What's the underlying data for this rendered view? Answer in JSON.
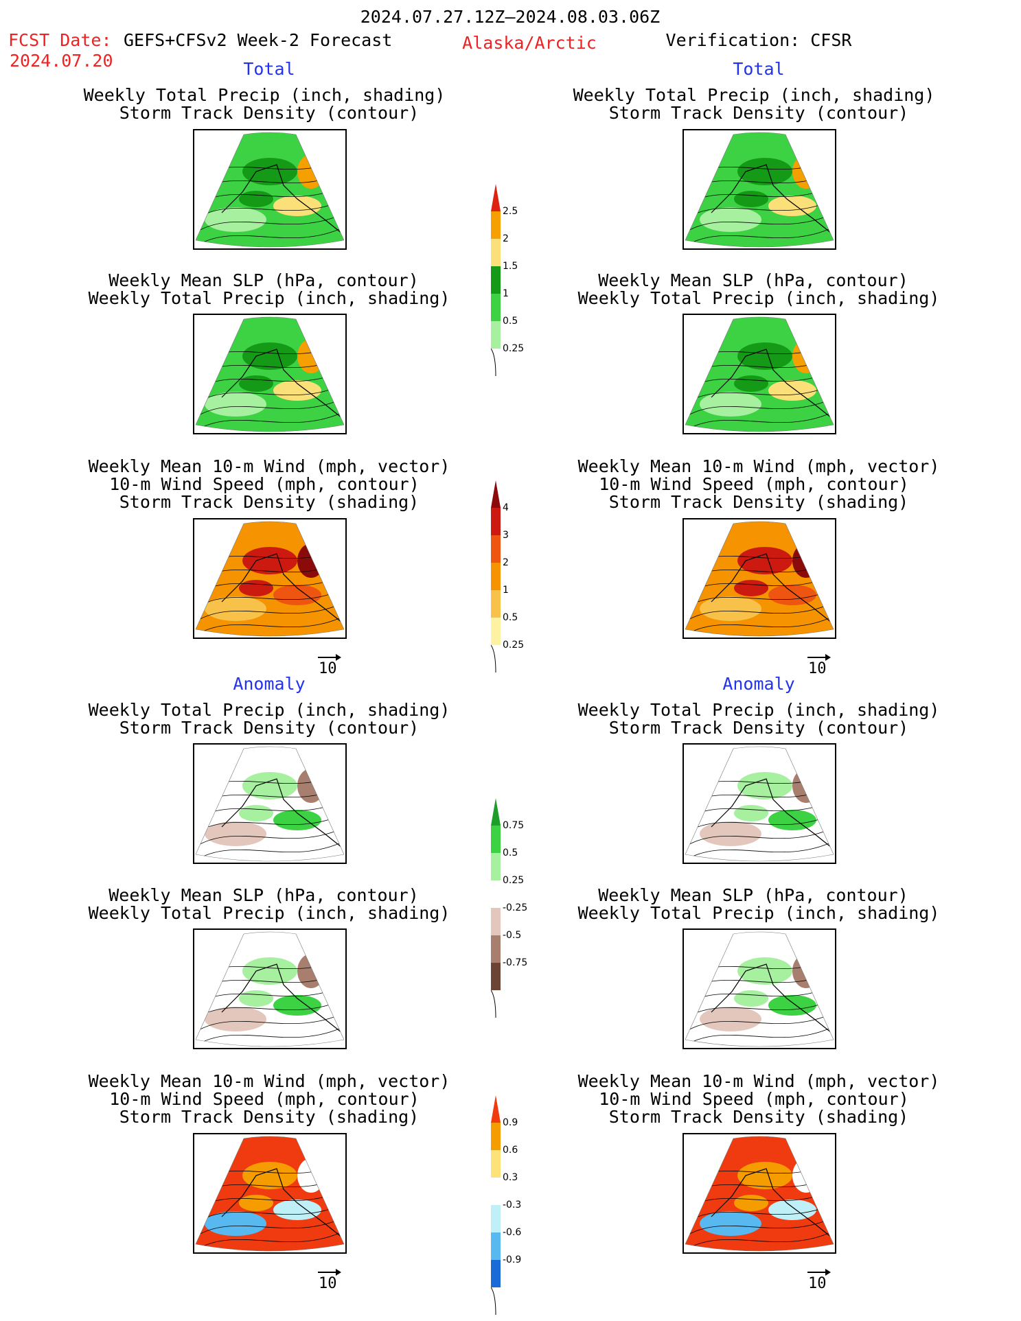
{
  "header": {
    "period": "2024.07.27.12Z–2024.08.03.06Z",
    "fcst_label": "FCST Date:",
    "model": "GEFS+CFSv2 Week-2 Forecast",
    "fcst_date": "2024.07.20",
    "region": "Alaska/Arctic",
    "verification": "Verification: CFSR"
  },
  "sections": {
    "total": "Total",
    "anomaly": "Anomaly"
  },
  "panel_titles": {
    "precip_storm": [
      "Weekly Total Precip (inch, shading)",
      "Storm Track Density (contour)"
    ],
    "slp_precip": [
      "Weekly Mean SLP (hPa, contour)",
      "Weekly Total Precip (inch, shading)"
    ],
    "wind_storm": [
      "Weekly Mean 10-m Wind (mph, vector)",
      "10-m Wind Speed (mph, contour)",
      "Storm Track Density (shading)"
    ]
  },
  "vector_ref": "10",
  "colorbars": [
    {
      "id": "total-precip",
      "labels": [
        "2.5",
        "2",
        "1.5",
        "1",
        "0.5",
        "0.25"
      ],
      "colors": [
        "#dd2211",
        "#f5a000",
        "#fbe07a",
        "#159a17",
        "#3cd244",
        "#a6f0a0"
      ]
    },
    {
      "id": "total-storm",
      "labels": [
        "4",
        "3",
        "2",
        "1",
        "0.5",
        "0.25"
      ],
      "colors": [
        "#8b0b0b",
        "#cc1a10",
        "#ee5511",
        "#f59300",
        "#f7c14a",
        "#fdf2a2"
      ]
    },
    {
      "id": "anom-precip",
      "labels": [
        "0.75",
        "0.5",
        "0.25",
        "-0.25",
        "-0.5",
        "-0.75"
      ],
      "colors": [
        "#1f9d2a",
        "#3cd244",
        "#a6f0a0",
        "#ffffff",
        "#e3c6bc",
        "#a87f6f",
        "#6b4436"
      ]
    },
    {
      "id": "anom-storm",
      "labels": [
        "0.9",
        "0.6",
        "0.3",
        "-0.3",
        "-0.6",
        "-0.9"
      ],
      "colors": [
        "#f03b10",
        "#f59c00",
        "#fde27a",
        "#ffffff",
        "#bff0f8",
        "#58b9f0",
        "#1a6ad8"
      ]
    }
  ],
  "chart_data": {
    "type": "heatmap",
    "title": "2024.07.27.12Z–2024.08.03.06Z",
    "panels": [
      "precip_storm",
      "slp_precip",
      "wind_storm"
    ],
    "columns": [
      "GEFS+CFSv2 Week-2 Forecast",
      "Verification: CFSR"
    ],
    "rows": [
      "Total",
      "Anomaly"
    ]
  }
}
